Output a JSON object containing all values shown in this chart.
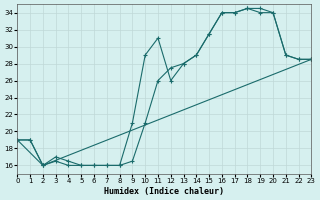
{
  "xlabel": "Humidex (Indice chaleur)",
  "ylabel": "",
  "bg_color": "#d6f0ef",
  "grid_color": "#c0d8d8",
  "line_color": "#1a6b6b",
  "xlim": [
    0,
    23
  ],
  "ylim": [
    15,
    35
  ],
  "xticks": [
    0,
    1,
    2,
    3,
    4,
    5,
    6,
    7,
    8,
    9,
    10,
    11,
    12,
    13,
    14,
    15,
    16,
    17,
    18,
    19,
    20,
    21,
    22,
    23
  ],
  "yticks": [
    16,
    18,
    20,
    22,
    24,
    26,
    28,
    30,
    32,
    34
  ],
  "line1_x": [
    0,
    1,
    2,
    3,
    4,
    5,
    6,
    7,
    8,
    9,
    10,
    11,
    12,
    13,
    14,
    15,
    16,
    17,
    18,
    19,
    20,
    21,
    22,
    23
  ],
  "line1_y": [
    19,
    19,
    16,
    16.5,
    16,
    16,
    16,
    16,
    16,
    16.5,
    21,
    26,
    27.5,
    28,
    29,
    31.5,
    34,
    34,
    34.5,
    34.5,
    34,
    29,
    28.5,
    28.5
  ],
  "line2_x": [
    0,
    1,
    2,
    3,
    4,
    5,
    6,
    7,
    8,
    9,
    10,
    11,
    12,
    13,
    14,
    15,
    16,
    17,
    18,
    19,
    20,
    21,
    22,
    23
  ],
  "line2_y": [
    19,
    19,
    16,
    17,
    16.5,
    16,
    16,
    16,
    16,
    21,
    29,
    31,
    26,
    28,
    29,
    31.5,
    34,
    34,
    34.5,
    34,
    34,
    29,
    28.5,
    28.5
  ],
  "line3_x": [
    0,
    2,
    23
  ],
  "line3_y": [
    19,
    16,
    28.5
  ]
}
